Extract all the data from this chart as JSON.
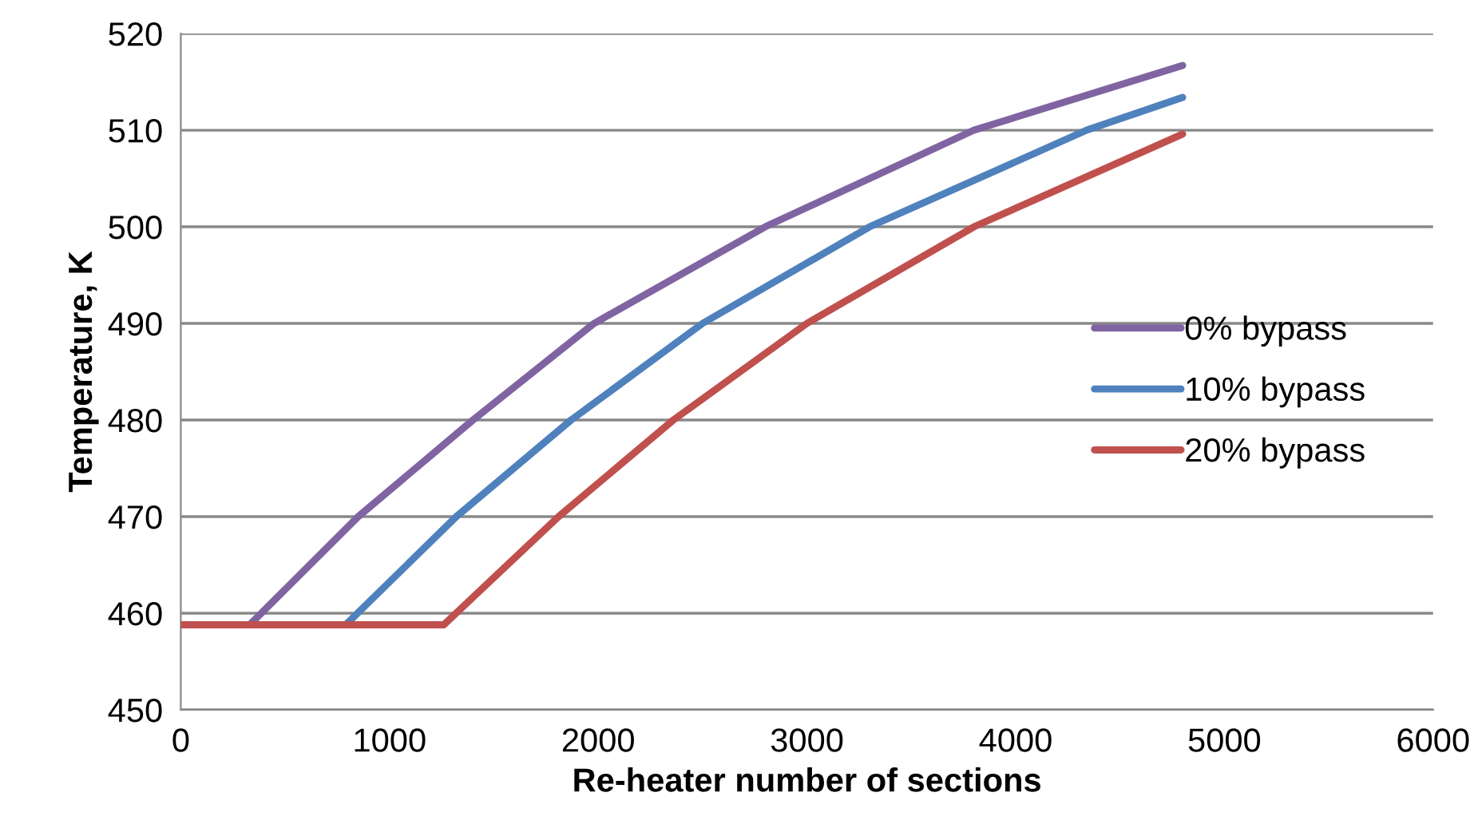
{
  "chart_data": {
    "type": "line",
    "xlabel": "Re-heater number of sections",
    "ylabel": "Temperature, K",
    "xlim": [
      0,
      6000
    ],
    "xticks": [
      0,
      1000,
      2000,
      3000,
      4000,
      5000,
      6000
    ],
    "ylim": [
      450,
      520
    ],
    "yticks": [
      450,
      460,
      470,
      480,
      490,
      500,
      510,
      520
    ],
    "grid": "y",
    "legend": "right",
    "marker": "none",
    "line_style": "solid",
    "series": [
      {
        "name": "0% bypass",
        "color": "#8064a2",
        "x": [
          0,
          330,
          850,
          1400,
          1980,
          2800,
          3800,
          4800
        ],
        "values": [
          458.8,
          458.8,
          470,
          480,
          490,
          500,
          510,
          516.7
        ]
      },
      {
        "name": "10% bypass",
        "color": "#4f81bd",
        "x": [
          0,
          790,
          1320,
          1870,
          2500,
          3300,
          4340,
          4800
        ],
        "values": [
          458.8,
          458.8,
          470,
          480,
          490,
          500,
          510,
          513.4
        ]
      },
      {
        "name": "20% bypass",
        "color": "#c0504d",
        "x": [
          0,
          1260,
          1810,
          2360,
          3000,
          3800,
          4800
        ],
        "values": [
          458.8,
          458.8,
          470,
          480,
          490,
          500,
          509.6
        ]
      }
    ]
  }
}
